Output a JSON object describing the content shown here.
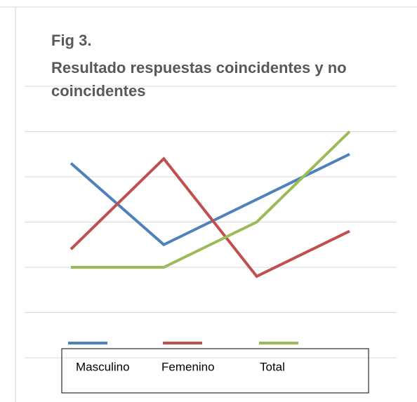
{
  "chart_data": {
    "type": "line",
    "title": "Fig 3.",
    "subtitle": "Resultado respuestas coincidentes y no coincidentes",
    "categories": [
      null,
      null,
      null,
      null
    ],
    "series": [
      {
        "name": "Masculino",
        "color": "#4f81bd",
        "values": [
          4.3,
          2.5,
          3.5,
          4.5
        ]
      },
      {
        "name": "Femenino",
        "color": "#c0504d",
        "values": [
          2.4,
          4.4,
          1.8,
          2.8
        ]
      },
      {
        "name": "Total",
        "color": "#9bbb59",
        "values": [
          2,
          2,
          3,
          5
        ]
      }
    ],
    "ylim": [
      0,
      6
    ],
    "yticks": [
      0,
      1,
      2,
      3,
      4,
      5,
      6
    ],
    "grid": true,
    "legend": "bottom"
  }
}
